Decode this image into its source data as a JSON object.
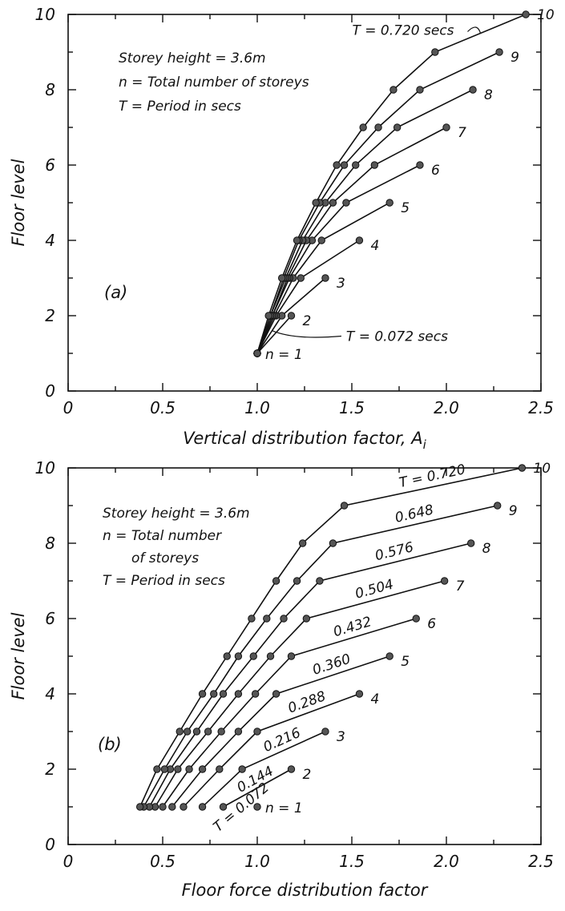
{
  "chart_data": [
    {
      "type": "line",
      "panel_tag": "(a)",
      "xlabel": "Vertical distribution factor, A",
      "xlabel_sub": "i",
      "ylabel": "Floor level",
      "xlim": [
        0,
        2.5
      ],
      "ylim": [
        0,
        10
      ],
      "xticks": [
        "0",
        "0.5",
        "1.0",
        "1.5",
        "2.0",
        "2.5"
      ],
      "yticks": [
        "0",
        "2",
        "4",
        "6",
        "8",
        "10"
      ],
      "notes": [
        "Storey height = 3.6m",
        "n = Total number of storeys",
        "T = Period in secs"
      ],
      "annotations": [
        {
          "text": "T = 0.720 secs",
          "series": "10"
        },
        {
          "text": "T = 0.072 secs",
          "series": "1"
        }
      ],
      "series": [
        {
          "name": "n = 1",
          "x": [
            1.0
          ],
          "y": [
            1
          ]
        },
        {
          "name": "2",
          "x": [
            1.0,
            1.18
          ],
          "y": [
            1,
            2
          ]
        },
        {
          "name": "3",
          "x": [
            1.0,
            1.13,
            1.36
          ],
          "y": [
            1,
            2,
            3
          ]
        },
        {
          "name": "4",
          "x": [
            1.0,
            1.1,
            1.23,
            1.54
          ],
          "y": [
            1,
            2,
            3,
            4
          ]
        },
        {
          "name": "5",
          "x": [
            1.0,
            1.09,
            1.19,
            1.34,
            1.7
          ],
          "y": [
            1,
            2,
            3,
            4,
            5
          ]
        },
        {
          "name": "6",
          "x": [
            1.0,
            1.08,
            1.17,
            1.29,
            1.47,
            1.86
          ],
          "y": [
            1,
            2,
            3,
            4,
            5,
            6
          ]
        },
        {
          "name": "7",
          "x": [
            1.0,
            1.08,
            1.16,
            1.26,
            1.4,
            1.62,
            2.0
          ],
          "y": [
            1,
            2,
            3,
            4,
            5,
            6,
            7
          ]
        },
        {
          "name": "8",
          "x": [
            1.0,
            1.07,
            1.15,
            1.24,
            1.36,
            1.52,
            1.74,
            2.14
          ],
          "y": [
            1,
            2,
            3,
            4,
            5,
            6,
            7,
            8
          ]
        },
        {
          "name": "9",
          "x": [
            1.0,
            1.07,
            1.14,
            1.22,
            1.33,
            1.46,
            1.64,
            1.86,
            2.28
          ],
          "y": [
            1,
            2,
            3,
            4,
            5,
            6,
            7,
            8,
            9
          ]
        },
        {
          "name": "10",
          "x": [
            1.0,
            1.06,
            1.13,
            1.21,
            1.31,
            1.42,
            1.56,
            1.72,
            1.94,
            2.42
          ],
          "y": [
            1,
            2,
            3,
            4,
            5,
            6,
            7,
            8,
            9,
            10
          ]
        }
      ]
    },
    {
      "type": "line",
      "panel_tag": "(b)",
      "xlabel": "Floor force distribution factor",
      "xlabel_sub": "",
      "ylabel": "Floor level",
      "xlim": [
        0,
        2.5
      ],
      "ylim": [
        0,
        10
      ],
      "xticks": [
        "0",
        "0.5",
        "1.0",
        "1.5",
        "2.0",
        "2.5"
      ],
      "yticks": [
        "0",
        "2",
        "4",
        "6",
        "8",
        "10"
      ],
      "notes": [
        "Storey height = 3.6m",
        "n =  Total number",
        "of storeys",
        "T =   Period in secs"
      ],
      "segment_labels": [
        "T = 0.072",
        "0.144",
        "0.216",
        "0.288",
        "0.360",
        "0.432",
        "0.504",
        "0.576",
        "0.648",
        "T = 0.720"
      ],
      "series": [
        {
          "name": "n = 1",
          "x": [
            1.0
          ],
          "y": [
            1
          ]
        },
        {
          "name": "2",
          "x": [
            0.82,
            1.18
          ],
          "y": [
            1,
            2
          ]
        },
        {
          "name": "3",
          "x": [
            0.71,
            0.92,
            1.36
          ],
          "y": [
            1,
            2,
            3
          ]
        },
        {
          "name": "4",
          "x": [
            0.61,
            0.8,
            1.0,
            1.54
          ],
          "y": [
            1,
            2,
            3,
            4
          ]
        },
        {
          "name": "5",
          "x": [
            0.55,
            0.71,
            0.9,
            1.1,
            1.7
          ],
          "y": [
            1,
            2,
            3,
            4,
            5
          ]
        },
        {
          "name": "6",
          "x": [
            0.5,
            0.64,
            0.81,
            0.99,
            1.18,
            1.84
          ],
          "y": [
            1,
            2,
            3,
            4,
            5,
            6
          ]
        },
        {
          "name": "7",
          "x": [
            0.46,
            0.58,
            0.74,
            0.9,
            1.07,
            1.26,
            1.99
          ],
          "y": [
            1,
            2,
            3,
            4,
            5,
            6,
            7
          ]
        },
        {
          "name": "8",
          "x": [
            0.43,
            0.54,
            0.68,
            0.82,
            0.98,
            1.14,
            1.33,
            2.13
          ],
          "y": [
            1,
            2,
            3,
            4,
            5,
            6,
            7,
            8
          ]
        },
        {
          "name": "9",
          "x": [
            0.4,
            0.51,
            0.63,
            0.77,
            0.9,
            1.05,
            1.21,
            1.4,
            2.27
          ],
          "y": [
            1,
            2,
            3,
            4,
            5,
            6,
            7,
            8,
            9
          ]
        },
        {
          "name": "10",
          "x": [
            0.38,
            0.47,
            0.59,
            0.71,
            0.84,
            0.97,
            1.1,
            1.24,
            1.46,
            2.4
          ],
          "y": [
            1,
            2,
            3,
            4,
            5,
            6,
            7,
            8,
            9,
            10
          ]
        }
      ]
    }
  ]
}
